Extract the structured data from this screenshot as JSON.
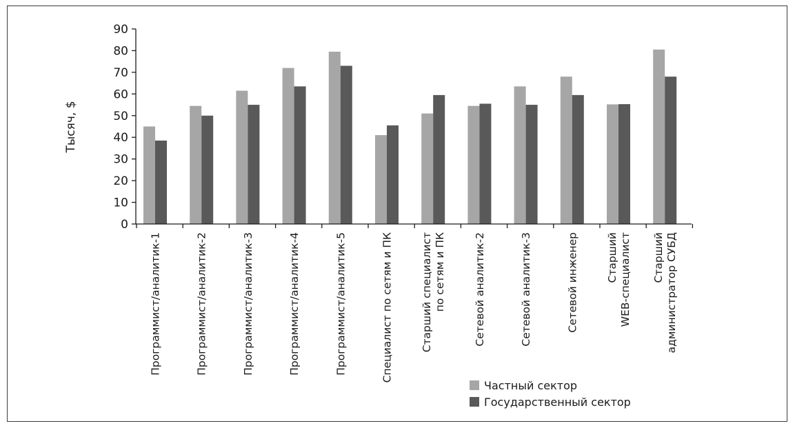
{
  "chart_data": {
    "type": "bar",
    "title": "",
    "xlabel": "",
    "ylabel": "Тысяч, $",
    "ylim": [
      0,
      90
    ],
    "yticks": [
      0,
      10,
      20,
      30,
      40,
      50,
      60,
      70,
      80,
      90
    ],
    "grid": false,
    "legend_position": "bottom-right",
    "categories": [
      [
        "Программист/аналитик-1"
      ],
      [
        "Программист/аналитик-2"
      ],
      [
        "Программист/аналитик-3"
      ],
      [
        "Программист/аналитик-4"
      ],
      [
        "Программист/аналитик-5"
      ],
      [
        "Специалист по сетям и ПК"
      ],
      [
        "Старший специалист",
        "по сетям и ПК"
      ],
      [
        "Сетевой аналитик-2"
      ],
      [
        "Сетевой аналитик-3"
      ],
      [
        "Сетевой инженер"
      ],
      [
        "Старший",
        "WEB-специалист"
      ],
      [
        "Старший",
        "администратор СУБД"
      ]
    ],
    "series": [
      {
        "name": "Частный сектор",
        "color": "#a6a6a6",
        "values": [
          45,
          54.5,
          61.5,
          72,
          79.5,
          41,
          51,
          54.5,
          63.5,
          68,
          55.2,
          80.5
        ]
      },
      {
        "name": "Государственный сектор",
        "color": "#595959",
        "values": [
          38.5,
          50,
          55,
          63.5,
          73,
          45.5,
          59.5,
          55.5,
          55,
          59.5,
          55.3,
          68
        ]
      }
    ]
  }
}
